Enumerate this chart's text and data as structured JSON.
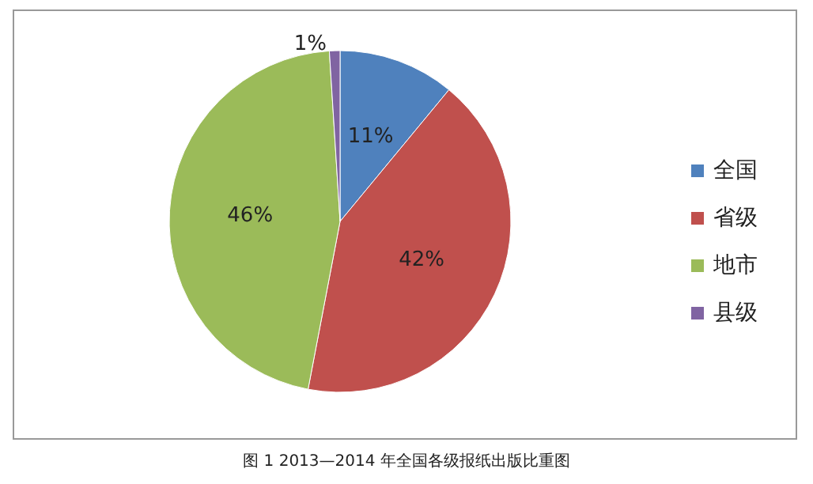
{
  "chart_data": {
    "type": "pie",
    "title": "图 1 2013—2014 年全国各级报纸出版比重图",
    "categories": [
      "全国",
      "省级",
      "地市",
      "县级"
    ],
    "values": [
      11,
      42,
      46,
      1
    ],
    "colors": [
      "#4f81bd",
      "#c0504d",
      "#9bbb59",
      "#8064a2"
    ],
    "value_labels": [
      "11%",
      "42%",
      "46%",
      "1%"
    ],
    "legend": "right"
  }
}
